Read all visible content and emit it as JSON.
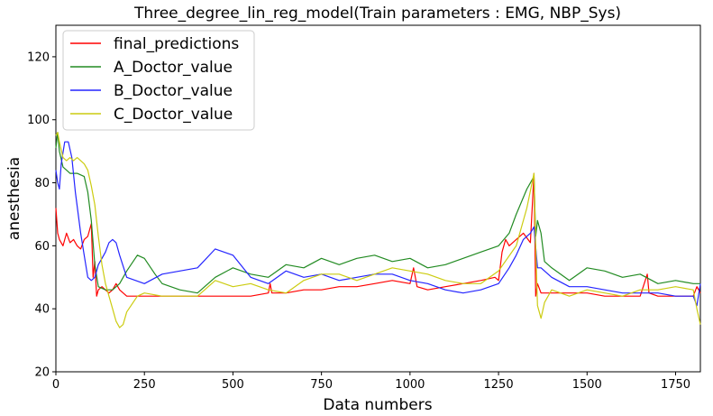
{
  "chart_data": {
    "type": "line",
    "title": "Three_degree_lin_reg_model(Train parameters : EMG, NBP_Sys)",
    "xlabel": "Data numbers",
    "ylabel": "anesthesia",
    "xlim": [
      0,
      1820
    ],
    "ylim": [
      20,
      130
    ],
    "xticks": [
      0,
      250,
      500,
      750,
      1000,
      1250,
      1500,
      1750
    ],
    "xtick_labels": [
      "0",
      "250",
      "500",
      "750",
      "1000",
      "1250",
      "1500",
      "1750"
    ],
    "yticks": [
      20,
      40,
      60,
      80,
      100,
      120
    ],
    "ytick_labels": [
      "20",
      "40",
      "60",
      "80",
      "100",
      "120"
    ],
    "grid": false,
    "legend_position": "top-left",
    "series": [
      {
        "name": "final_predictions",
        "color": "#ff0000",
        "x": [
          0,
          5,
          10,
          20,
          30,
          40,
          50,
          60,
          70,
          80,
          90,
          100,
          105,
          110,
          115,
          120,
          130,
          140,
          150,
          160,
          170,
          180,
          200,
          250,
          300,
          350,
          400,
          450,
          500,
          550,
          600,
          605,
          610,
          650,
          700,
          750,
          800,
          850,
          900,
          950,
          1000,
          1010,
          1020,
          1050,
          1100,
          1150,
          1200,
          1240,
          1250,
          1260,
          1270,
          1280,
          1300,
          1320,
          1340,
          1350,
          1355,
          1360,
          1370,
          1400,
          1450,
          1500,
          1550,
          1600,
          1650,
          1670,
          1675,
          1700,
          1750,
          1800,
          1810,
          1820
        ],
        "y": [
          72,
          64,
          62,
          60,
          64,
          61,
          62,
          60,
          59,
          62,
          63,
          67,
          50,
          55,
          44,
          46,
          47,
          46,
          45,
          46,
          48,
          46,
          44,
          44,
          44,
          44,
          44,
          44,
          44,
          44,
          45,
          48,
          45,
          45,
          46,
          46,
          47,
          47,
          48,
          49,
          48,
          53,
          47,
          46,
          47,
          48,
          49,
          50,
          49,
          58,
          62,
          60,
          62,
          64,
          61,
          83,
          44,
          48,
          45,
          45,
          45,
          45,
          44,
          44,
          44,
          51,
          45,
          44,
          44,
          44,
          47,
          45
        ]
      },
      {
        "name": "A_Doctor_value",
        "color": "#228b22",
        "x": [
          0,
          5,
          10,
          20,
          40,
          60,
          80,
          90,
          100,
          110,
          120,
          140,
          160,
          180,
          200,
          230,
          250,
          280,
          300,
          350,
          400,
          450,
          500,
          550,
          600,
          650,
          700,
          750,
          800,
          850,
          900,
          950,
          1000,
          1050,
          1100,
          1150,
          1200,
          1250,
          1280,
          1300,
          1330,
          1350,
          1355,
          1360,
          1370,
          1380,
          1400,
          1450,
          1500,
          1550,
          1600,
          1650,
          1700,
          1750,
          1800,
          1820
        ],
        "y": [
          91,
          96,
          90,
          85,
          83,
          83,
          82,
          77,
          68,
          54,
          47,
          46,
          46,
          48,
          52,
          57,
          56,
          51,
          48,
          46,
          45,
          50,
          53,
          51,
          50,
          54,
          53,
          56,
          54,
          56,
          57,
          55,
          56,
          53,
          54,
          56,
          58,
          60,
          64,
          70,
          78,
          82,
          63,
          68,
          64,
          55,
          53,
          49,
          53,
          52,
          50,
          51,
          48,
          49,
          48,
          48
        ]
      },
      {
        "name": "B_Doctor_value",
        "color": "#2424ff",
        "x": [
          0,
          5,
          10,
          15,
          25,
          35,
          45,
          55,
          70,
          80,
          90,
          100,
          110,
          115,
          120,
          130,
          140,
          150,
          160,
          170,
          180,
          200,
          250,
          300,
          350,
          400,
          450,
          500,
          550,
          600,
          650,
          700,
          750,
          800,
          850,
          900,
          950,
          1000,
          1050,
          1100,
          1150,
          1200,
          1250,
          1280,
          1300,
          1320,
          1340,
          1350,
          1360,
          1370,
          1400,
          1450,
          1500,
          1550,
          1600,
          1650,
          1700,
          1750,
          1800,
          1810,
          1820
        ],
        "y": [
          84,
          80,
          78,
          86,
          93,
          93,
          88,
          77,
          64,
          57,
          50,
          49,
          50,
          52,
          54,
          56,
          58,
          61,
          62,
          61,
          57,
          50,
          48,
          51,
          52,
          53,
          59,
          57,
          50,
          48,
          52,
          50,
          51,
          49,
          50,
          51,
          51,
          49,
          48,
          46,
          45,
          46,
          48,
          53,
          57,
          62,
          64,
          66,
          53,
          53,
          50,
          47,
          47,
          46,
          45,
          45,
          45,
          44,
          44,
          41,
          48
        ]
      },
      {
        "name": "C_Doctor_value",
        "color": "#cccc11",
        "x": [
          0,
          5,
          10,
          20,
          30,
          40,
          50,
          60,
          70,
          80,
          90,
          100,
          110,
          120,
          130,
          140,
          150,
          160,
          170,
          180,
          190,
          200,
          230,
          250,
          300,
          350,
          400,
          450,
          500,
          550,
          600,
          650,
          700,
          750,
          800,
          850,
          900,
          950,
          1000,
          1050,
          1100,
          1150,
          1200,
          1250,
          1300,
          1330,
          1350,
          1355,
          1360,
          1370,
          1380,
          1400,
          1450,
          1500,
          1550,
          1600,
          1650,
          1700,
          1750,
          1800,
          1810,
          1820
        ],
        "y": [
          95,
          96,
          93,
          88,
          87,
          88,
          87,
          88,
          87,
          86,
          84,
          79,
          73,
          63,
          54,
          48,
          44,
          40,
          36,
          34,
          35,
          39,
          44,
          45,
          44,
          44,
          44,
          49,
          47,
          48,
          46,
          45,
          49,
          51,
          51,
          49,
          51,
          53,
          52,
          51,
          49,
          48,
          48,
          52,
          60,
          72,
          83,
          60,
          41,
          37,
          42,
          46,
          44,
          46,
          45,
          44,
          46,
          46,
          47,
          46,
          40,
          35
        ]
      }
    ]
  }
}
